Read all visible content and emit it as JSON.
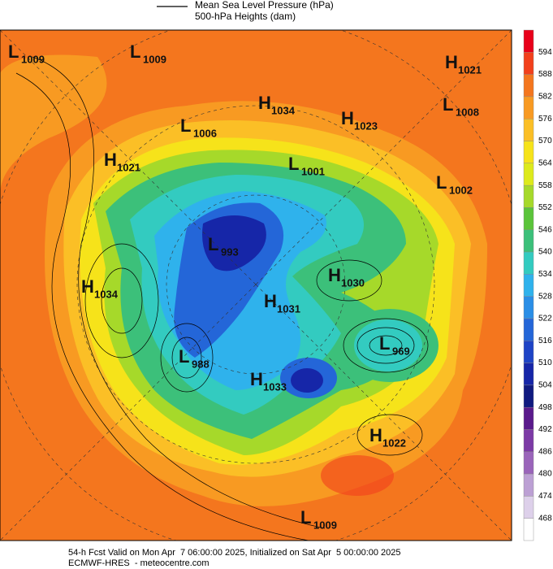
{
  "legend": {
    "pressure": "Mean Sea Level Pressure (hPa)",
    "heights": "500-hPa Heights (dam)"
  },
  "colorbar": {
    "labels": [
      "594",
      "588",
      "582",
      "576",
      "570",
      "564",
      "558",
      "552",
      "546",
      "540",
      "534",
      "528",
      "522",
      "516",
      "510",
      "504",
      "498",
      "492",
      "486",
      "480",
      "474",
      "468"
    ],
    "colors": [
      "#e8001a",
      "#f2401c",
      "#f4761e",
      "#f89a22",
      "#fbbf26",
      "#f6e31a",
      "#ddea1c",
      "#a6d92a",
      "#5bc43a",
      "#3cc07a",
      "#33cbc0",
      "#2fb2ec",
      "#2a8ee6",
      "#2466d8",
      "#1e44c6",
      "#1626a8",
      "#101a80",
      "#5a1a8c",
      "#7c3aa6",
      "#9a64ba",
      "#bca0d4",
      "#ddd0ea",
      "#ffffff"
    ]
  },
  "centers": [
    {
      "type": "L",
      "value": "1009"
    },
    {
      "type": "L",
      "value": "1009"
    },
    {
      "type": "H",
      "value": "1021"
    },
    {
      "type": "L",
      "value": "1008"
    },
    {
      "type": "H",
      "value": "1034"
    },
    {
      "type": "H",
      "value": "1023"
    },
    {
      "type": "L",
      "value": "1006"
    },
    {
      "type": "H",
      "value": "1021"
    },
    {
      "type": "L",
      "value": "1001"
    },
    {
      "type": "L",
      "value": "1002"
    },
    {
      "type": "L",
      "value": "993"
    },
    {
      "type": "H",
      "value": "1030"
    },
    {
      "type": "H",
      "value": "1034"
    },
    {
      "type": "H",
      "value": "1031"
    },
    {
      "type": "L",
      "value": "969"
    },
    {
      "type": "L",
      "value": "988"
    },
    {
      "type": "H",
      "value": "1033"
    },
    {
      "type": "H",
      "value": "1022"
    },
    {
      "type": "L",
      "value": "1009"
    }
  ],
  "footer": {
    "line1": "54-h Fcst Valid on Mon Apr  7 06:00:00 2025, Initialized on Sat Apr  5 00:00:00 2025",
    "line2": "ECMWF-HRES  - meteocentre.com"
  }
}
